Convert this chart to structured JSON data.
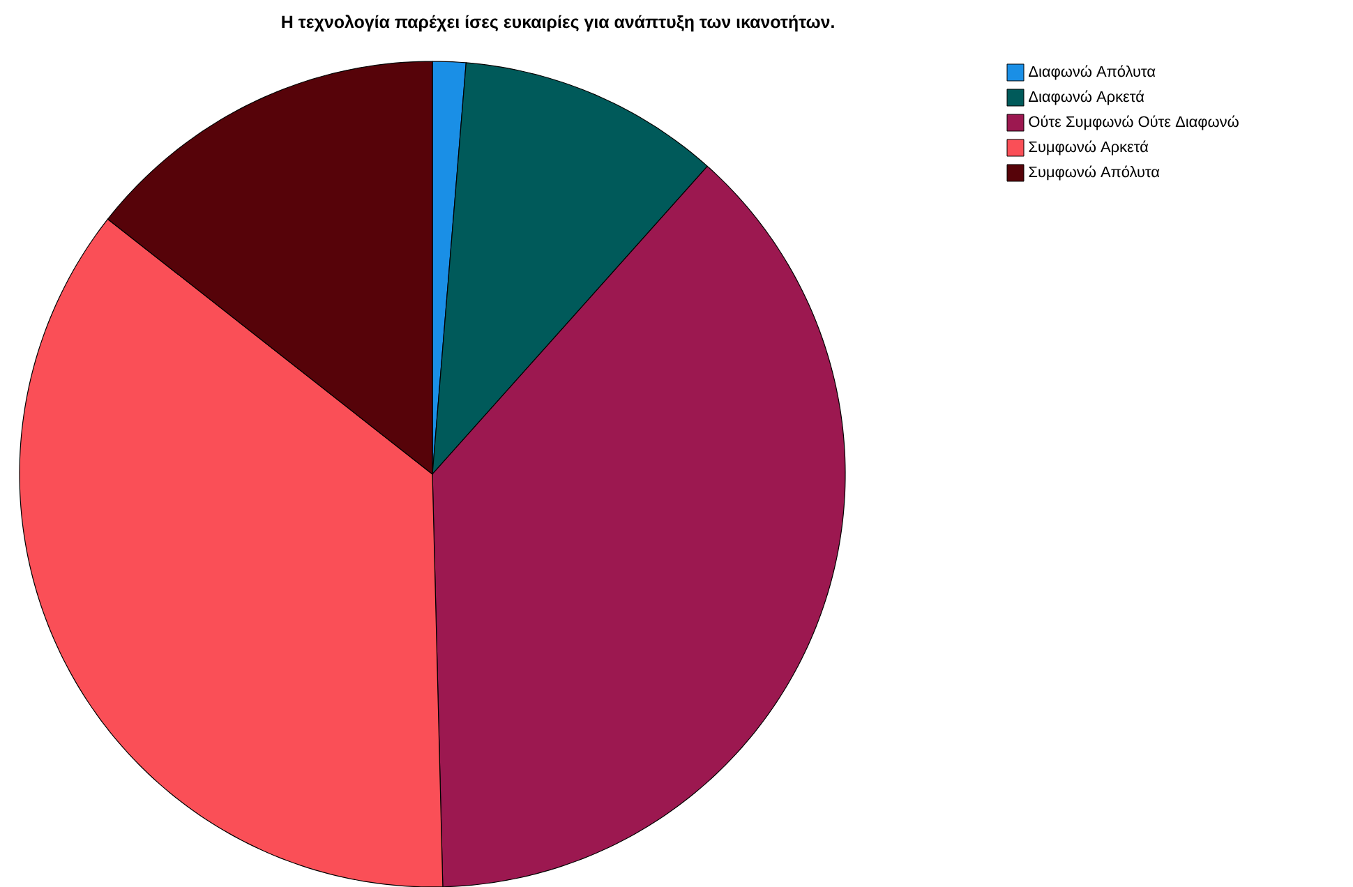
{
  "chart_data": {
    "type": "pie",
    "title": "Η τεχνολογία παρέχει ίσες ευκαιρίες για ανάπτυξη των ικανοτήτων.",
    "categories": [
      "Διαφωνώ Απόλυτα",
      "Διαφωνώ Αρκετά",
      "Ούτε Συμφωνώ Ούτε Διαφωνώ",
      "Συμφωνώ Αρκετά",
      "Συμφωνώ Απόλυτα"
    ],
    "values": [
      1.3,
      10.3,
      38.0,
      36.0,
      14.4
    ],
    "colors": [
      "#1a8fe6",
      "#005a5a",
      "#9c1850",
      "#fa4f57",
      "#560309"
    ],
    "legend": "top right"
  }
}
